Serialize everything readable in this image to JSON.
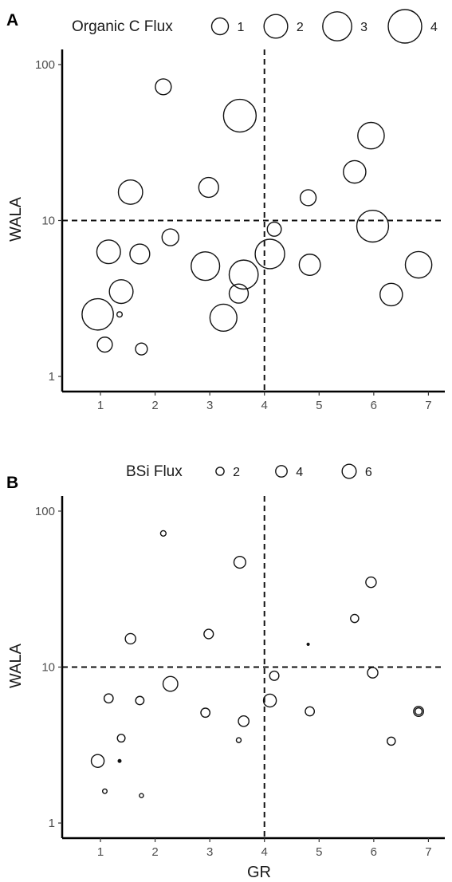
{
  "chart_data": [
    {
      "panel": "A",
      "type": "scatter",
      "xlabel": "",
      "ylabel": "WALA",
      "x_scale": "linear",
      "y_scale": "log",
      "xlim": [
        0.3,
        7.3
      ],
      "ylim": [
        0.8,
        125
      ],
      "x_ticks": [
        "1",
        "2",
        "3",
        "4",
        "5",
        "6",
        "7"
      ],
      "y_ticks": [
        "1",
        "10",
        "100"
      ],
      "reference_lines": {
        "x": 4,
        "y": 10,
        "style": "dashed"
      },
      "size_legend": {
        "title": "Organic C Flux",
        "labels": [
          "1",
          "2",
          "3",
          "4"
        ],
        "values": [
          1,
          2,
          3,
          4
        ]
      },
      "points": [
        {
          "x": 2.15,
          "y": 72,
          "size": 0.9
        },
        {
          "x": 3.55,
          "y": 47,
          "size": 3.8
        },
        {
          "x": 5.95,
          "y": 35,
          "size": 2.5
        },
        {
          "x": 5.65,
          "y": 20.5,
          "size": 1.8
        },
        {
          "x": 1.55,
          "y": 15.2,
          "size": 2.1
        },
        {
          "x": 2.98,
          "y": 16.3,
          "size": 1.4
        },
        {
          "x": 4.8,
          "y": 14.0,
          "size": 0.9
        },
        {
          "x": 5.98,
          "y": 9.2,
          "size": 3.6
        },
        {
          "x": 4.18,
          "y": 8.8,
          "size": 0.7
        },
        {
          "x": 2.28,
          "y": 7.8,
          "size": 1.0
        },
        {
          "x": 1.15,
          "y": 6.3,
          "size": 2.0
        },
        {
          "x": 1.72,
          "y": 6.1,
          "size": 1.4
        },
        {
          "x": 4.1,
          "y": 6.1,
          "size": 3.1
        },
        {
          "x": 2.92,
          "y": 5.1,
          "size": 2.9
        },
        {
          "x": 4.83,
          "y": 5.2,
          "size": 1.6
        },
        {
          "x": 6.82,
          "y": 5.2,
          "size": 2.5
        },
        {
          "x": 3.62,
          "y": 4.5,
          "size": 3.0
        },
        {
          "x": 1.38,
          "y": 3.5,
          "size": 2.0
        },
        {
          "x": 3.53,
          "y": 3.4,
          "size": 1.3
        },
        {
          "x": 6.32,
          "y": 3.35,
          "size": 1.8
        },
        {
          "x": 0.95,
          "y": 2.5,
          "size": 3.5
        },
        {
          "x": 3.25,
          "y": 2.38,
          "size": 2.6
        },
        {
          "x": 1.35,
          "y": 2.5,
          "size": 0.1
        },
        {
          "x": 1.08,
          "y": 1.6,
          "size": 0.8
        },
        {
          "x": 1.75,
          "y": 1.5,
          "size": 0.5
        }
      ]
    },
    {
      "panel": "B",
      "type": "scatter",
      "xlabel": "GR",
      "ylabel": "WALA",
      "x_scale": "linear",
      "y_scale": "log",
      "xlim": [
        0.3,
        7.3
      ],
      "ylim": [
        0.8,
        125
      ],
      "x_ticks": [
        "1",
        "2",
        "3",
        "4",
        "5",
        "6",
        "7"
      ],
      "y_ticks": [
        "1",
        "10",
        "100"
      ],
      "reference_lines": {
        "x": 4,
        "y": 10,
        "style": "dashed"
      },
      "size_legend": {
        "title": "BSi Flux",
        "labels": [
          "2",
          "4",
          "6"
        ],
        "values": [
          2,
          4,
          6
        ]
      },
      "points": [
        {
          "x": 2.15,
          "y": 72,
          "size": 0.9
        },
        {
          "x": 3.55,
          "y": 47,
          "size": 4.2
        },
        {
          "x": 5.95,
          "y": 35,
          "size": 3.3
        },
        {
          "x": 5.65,
          "y": 20.5,
          "size": 2.0
        },
        {
          "x": 1.55,
          "y": 15.2,
          "size": 3.3
        },
        {
          "x": 2.98,
          "y": 16.3,
          "size": 2.7
        },
        {
          "x": 4.8,
          "y": 14.0,
          "size": 0.15
        },
        {
          "x": 5.98,
          "y": 9.2,
          "size": 3.3
        },
        {
          "x": 4.18,
          "y": 8.8,
          "size": 2.6
        },
        {
          "x": 2.28,
          "y": 7.8,
          "size": 6.6
        },
        {
          "x": 1.15,
          "y": 6.3,
          "size": 2.5
        },
        {
          "x": 1.72,
          "y": 6.1,
          "size": 2.1
        },
        {
          "x": 4.1,
          "y": 6.1,
          "size": 5.0
        },
        {
          "x": 2.92,
          "y": 5.1,
          "size": 2.5
        },
        {
          "x": 4.83,
          "y": 5.2,
          "size": 2.5
        },
        {
          "x": 6.82,
          "y": 5.2,
          "size": 1.5
        },
        {
          "x": 6.82,
          "y": 5.2,
          "size": 3.0
        },
        {
          "x": 3.62,
          "y": 4.5,
          "size": 3.4
        },
        {
          "x": 1.38,
          "y": 3.5,
          "size": 1.8
        },
        {
          "x": 3.53,
          "y": 3.4,
          "size": 0.7
        },
        {
          "x": 6.32,
          "y": 3.35,
          "size": 2.0
        },
        {
          "x": 0.95,
          "y": 2.5,
          "size": 5.0
        },
        {
          "x": 1.35,
          "y": 2.5,
          "size": 0.25
        },
        {
          "x": 1.08,
          "y": 1.6,
          "size": 0.6
        },
        {
          "x": 1.75,
          "y": 1.5,
          "size": 0.5
        }
      ]
    }
  ]
}
